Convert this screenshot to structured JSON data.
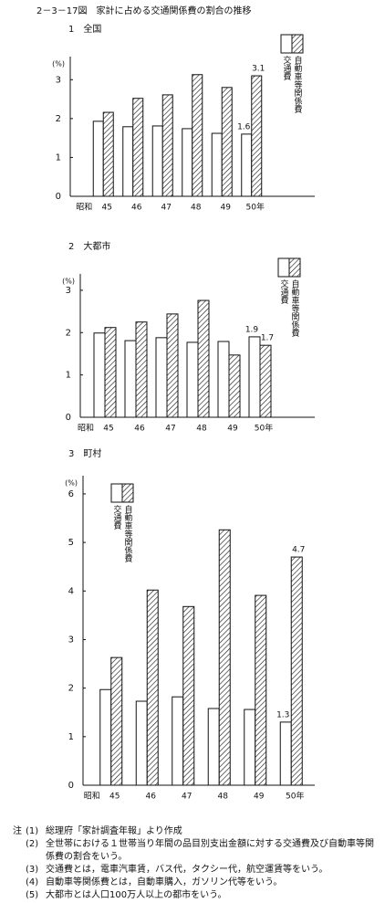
{
  "figure_title": "2－3－17図　家計に占める交通関係費の割合の推移",
  "chart_data": [
    {
      "type": "bar",
      "title": "1　全国",
      "ylabel": "(%)",
      "era_label": "昭和",
      "categories": [
        "45",
        "46",
        "47",
        "48",
        "49",
        "50年"
      ],
      "series": [
        {
          "name": "交通費",
          "color": "#ffffff",
          "values": [
            1.93,
            1.79,
            1.81,
            1.74,
            1.62,
            1.6
          ],
          "value_labels": [
            null,
            null,
            null,
            null,
            null,
            "1.6"
          ]
        },
        {
          "name": "自動車等関係費",
          "color": "#000000",
          "pattern": "hatch",
          "values": [
            2.16,
            2.52,
            2.61,
            3.13,
            2.8,
            3.1
          ],
          "value_labels": [
            null,
            null,
            null,
            null,
            null,
            "3.1"
          ]
        }
      ],
      "ylim": [
        0,
        3.5
      ],
      "yticks": [
        0,
        1,
        2,
        3
      ],
      "legend": "top-right"
    },
    {
      "type": "bar",
      "title": "2　大都市",
      "ylabel": "(%)",
      "era_label": "昭和",
      "categories": [
        "45",
        "46",
        "47",
        "48",
        "49",
        "50年"
      ],
      "series": [
        {
          "name": "交通費",
          "color": "#ffffff",
          "values": [
            1.99,
            1.81,
            1.88,
            1.77,
            1.79,
            1.9
          ],
          "value_labels": [
            null,
            null,
            null,
            null,
            null,
            "1.9"
          ]
        },
        {
          "name": "自動車等関係費",
          "color": "#000000",
          "pattern": "hatch",
          "values": [
            2.12,
            2.25,
            2.44,
            2.76,
            1.47,
            1.7
          ],
          "value_labels": [
            null,
            null,
            null,
            null,
            null,
            "1.7"
          ]
        }
      ],
      "ylim": [
        0,
        3.3
      ],
      "yticks": [
        0,
        1,
        2,
        3
      ],
      "legend": "top-right"
    },
    {
      "type": "bar",
      "title": "3　町村",
      "ylabel": "(%)",
      "era_label": "昭和",
      "categories": [
        "45",
        "46",
        "47",
        "48",
        "49",
        "50年"
      ],
      "series": [
        {
          "name": "交通費",
          "color": "#ffffff",
          "values": [
            1.97,
            1.73,
            1.82,
            1.58,
            1.56,
            1.3
          ],
          "value_labels": [
            null,
            null,
            null,
            null,
            null,
            "1.3"
          ]
        },
        {
          "name": "自動車等関係費",
          "color": "#000000",
          "pattern": "hatch",
          "values": [
            2.63,
            4.02,
            3.68,
            5.26,
            3.91,
            4.7
          ],
          "value_labels": [
            null,
            null,
            null,
            null,
            null,
            "4.7"
          ]
        }
      ],
      "ylim": [
        0,
        6.3
      ],
      "yticks": [
        0,
        1,
        2,
        3,
        4,
        5,
        6
      ],
      "legend": "top-left"
    }
  ],
  "notes": {
    "label": "注",
    "items": [
      {
        "num": "(1)",
        "text": "総理府「家計調査年報」より作成"
      },
      {
        "num": "(2)",
        "text": "全世帯における１世帯当り年間の品目別支出金額に対する交通費及び自動車等関係費の割合をいう。"
      },
      {
        "num": "(3)",
        "text": "交通費とは，電車汽車賃，バス代，タクシー代，航空運賃等をいう。"
      },
      {
        "num": "(4)",
        "text": "自動車等関係費とは，自動車購入，ガソリン代等をいう。"
      },
      {
        "num": "(5)",
        "text": "大都市とは人口100万人以上の都市をいう。"
      }
    ]
  }
}
